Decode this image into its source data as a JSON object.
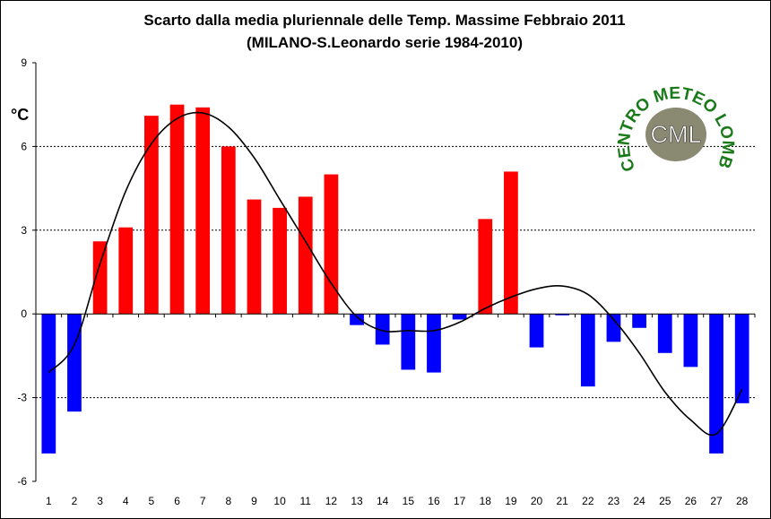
{
  "chart_data": {
    "type": "bar",
    "title": "Scarto dalla media pluriennale delle Temp. Massime Febbraio 2011",
    "subtitle": "(MILANO-S.Leonardo serie 1984-2010)",
    "ylabel": "°C",
    "xlabel": "",
    "ylim": [
      -6,
      9
    ],
    "yticks": [
      9,
      6,
      3,
      0,
      -3,
      -6
    ],
    "grid": "horizontal dashed at 6, 3, -3",
    "legend": "none",
    "categories": [
      "1",
      "2",
      "3",
      "4",
      "5",
      "6",
      "7",
      "8",
      "9",
      "10",
      "11",
      "12",
      "13",
      "14",
      "15",
      "16",
      "17",
      "18",
      "19",
      "20",
      "21",
      "22",
      "23",
      "24",
      "25",
      "26",
      "27",
      "28"
    ],
    "series": [
      {
        "values": [
          -5.0,
          -3.5,
          2.6,
          3.1,
          7.1,
          7.5,
          7.4,
          6.0,
          4.1,
          3.8,
          4.2,
          5.0,
          -0.4,
          -1.1,
          -2.0,
          -2.1,
          -0.2,
          3.4,
          5.1,
          -1.2,
          -0.05,
          -2.6,
          -1.0,
          -0.5,
          -1.4,
          -1.9,
          -5.0,
          -3.2
        ],
        "positive_color": "#ff0000",
        "negative_color": "#0000ff"
      }
    ],
    "trendline": {
      "type": "polynomial",
      "color": "#000000",
      "values": [
        -2.1,
        -1.1,
        1.8,
        4.4,
        6.1,
        7.0,
        7.2,
        6.7,
        5.6,
        4.1,
        2.6,
        1.1,
        -0.1,
        -0.6,
        -0.6,
        -0.6,
        -0.3,
        0.2,
        0.6,
        0.9,
        1.0,
        0.7,
        -0.2,
        -1.4,
        -2.8,
        -3.8,
        -4.3,
        -2.7
      ]
    }
  },
  "logo": {
    "text": "CML",
    "ring_text": "CENTRO METEO LOMBARDO",
    "ring_color": "#1a7a1a",
    "center_color": "#8a8a72"
  }
}
